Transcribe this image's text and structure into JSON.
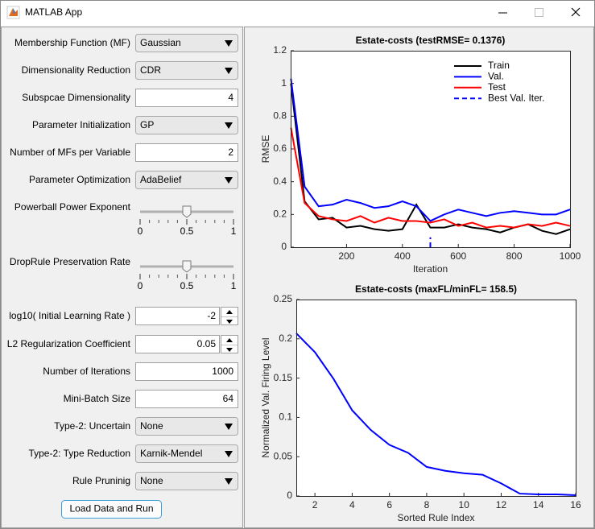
{
  "window": {
    "title": "MATLAB App"
  },
  "form": {
    "rows": [
      {
        "label": "Membership Function (MF)",
        "value": "Gaussian"
      },
      {
        "label": "Dimensionality Reduction",
        "value": "CDR"
      },
      {
        "label": "Subspcae Dimensionality",
        "value": 4
      },
      {
        "label": "Parameter Initialization",
        "value": "GP"
      },
      {
        "label": "Number of MFs per Variable",
        "value": 2
      },
      {
        "label": "Parameter Optimization",
        "value": "AdaBelief"
      },
      {
        "label": "Powerball Power Exponent",
        "value": 0.5,
        "lim": [
          0,
          1
        ],
        "ticks": [
          0,
          0.5,
          1
        ]
      },
      {
        "label": "DropRule Preservation Rate",
        "value": 0.5,
        "lim": [
          0,
          1
        ],
        "ticks": [
          0,
          0.5,
          1
        ]
      },
      {
        "label": "log10( Initial Learning Rate )",
        "value": -2
      },
      {
        "label": "L2 Regularization Coefficient",
        "value": 0.05
      },
      {
        "label": "Number of Iterations",
        "value": 1000
      },
      {
        "label": "Mini-Batch Size",
        "value": 64
      },
      {
        "label": "Type-2: Uncertain",
        "value": "None"
      },
      {
        "label": "Type-2: Type Reduction",
        "value": "Karnik-Mendel"
      },
      {
        "label": "Rule Pruninig",
        "value": "None"
      }
    ],
    "button": "Load Data and Run"
  },
  "chart_data": [
    {
      "type": "line",
      "title": "Estate-costs (testRMSE= 0.1376)",
      "x_label": "Iteration",
      "y_label": "RMSE",
      "x": [
        1,
        50,
        100,
        150,
        200,
        250,
        300,
        350,
        400,
        450,
        500,
        550,
        600,
        650,
        700,
        750,
        800,
        850,
        900,
        950,
        1000
      ],
      "series": [
        {
          "name": "Train",
          "color": "#000000",
          "values": [
            1.0,
            0.28,
            0.17,
            0.18,
            0.12,
            0.13,
            0.11,
            0.1,
            0.11,
            0.26,
            0.12,
            0.12,
            0.14,
            0.12,
            0.11,
            0.09,
            0.12,
            0.14,
            0.1,
            0.08,
            0.11
          ]
        },
        {
          "name": "Val.",
          "color": "#0000ff",
          "values": [
            1.03,
            0.37,
            0.25,
            0.26,
            0.29,
            0.27,
            0.24,
            0.25,
            0.28,
            0.25,
            0.16,
            0.2,
            0.23,
            0.21,
            0.19,
            0.21,
            0.22,
            0.21,
            0.2,
            0.2,
            0.23
          ]
        },
        {
          "name": "Test",
          "color": "#ff0000",
          "values": [
            0.73,
            0.27,
            0.19,
            0.17,
            0.16,
            0.19,
            0.15,
            0.18,
            0.16,
            0.16,
            0.15,
            0.17,
            0.13,
            0.15,
            0.12,
            0.13,
            0.12,
            0.14,
            0.13,
            0.15,
            0.13
          ]
        },
        {
          "name": "Best Val. Iter.",
          "color": "#0000ff",
          "linestyle": "--",
          "x": [
            500,
            500
          ],
          "values": [
            0,
            0.06
          ]
        }
      ],
      "xlim": [
        0,
        1000
      ],
      "xticks": [
        200,
        400,
        600,
        800,
        1000
      ],
      "ylim": [
        0,
        1.2
      ],
      "yticks": [
        0,
        0.2,
        0.4,
        0.6,
        0.8,
        1,
        1.2
      ],
      "legend": "northeast"
    },
    {
      "type": "line",
      "title": "Estate-costs (maxFL/minFL= 158.5)",
      "x_label": "Sorted Rule Index",
      "y_label": "Normalized Val. Firing Level",
      "x": [
        1,
        2,
        3,
        4,
        5,
        6,
        7,
        8,
        9,
        10,
        11,
        12,
        13,
        14,
        15,
        16
      ],
      "values": [
        0.207,
        0.183,
        0.149,
        0.109,
        0.084,
        0.065,
        0.055,
        0.037,
        0.032,
        0.029,
        0.027,
        0.016,
        0.003,
        0.002,
        0.002,
        0.001
      ],
      "color": "#0000ff",
      "xlim": [
        1,
        16
      ],
      "xticks": [
        2,
        4,
        6,
        8,
        10,
        12,
        14,
        16
      ],
      "ylim": [
        0,
        0.25
      ],
      "yticks": [
        0,
        0.05,
        0.1,
        0.15,
        0.2,
        0.25
      ]
    }
  ]
}
